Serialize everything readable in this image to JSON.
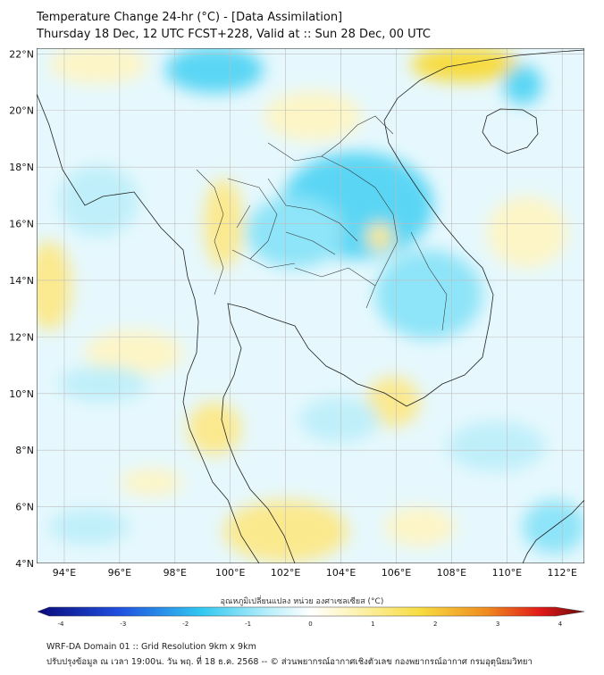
{
  "title_line1": "Temperature Change 24-hr (°C) - [Data Assimilation]",
  "title_line2": "Thursday 18 Dec, 12 UTC FCST+228, Valid at :: Sun 28 Dec, 00 UTC",
  "lat_labels": [
    "22°N",
    "20°N",
    "18°N",
    "16°N",
    "14°N",
    "12°N",
    "10°N",
    "8°N",
    "6°N",
    "4°N"
  ],
  "lon_labels": [
    "94°E",
    "96°E",
    "98°E",
    "100°E",
    "102°E",
    "104°E",
    "106°E",
    "108°E",
    "110°E",
    "112°E"
  ],
  "colorbar": {
    "label": "อุณหภูมิเปลี่ยนแปลง หน่วย องศาเซลเซียส (°C)",
    "min": -4,
    "max": 4,
    "ticks": [
      "-4",
      "-3",
      "-2",
      "-1",
      "0",
      "1",
      "2",
      "3",
      "4"
    ],
    "colors": {
      "navy": "#0a0a7a",
      "blue": "#2050e0",
      "cyan": "#30c8f0",
      "light_cyan": "#b6eefb",
      "white": "#ffffff",
      "light_yellow": "#fdf3b4",
      "yellow": "#f7dc40",
      "orange": "#f08c1e",
      "red": "#e01818",
      "dark_red": "#6a0a0a"
    }
  },
  "field_colors": {
    "ocean_base": "#e6f8fd",
    "pale_cyan": "#bfeffa",
    "cyan": "#8ee4f8",
    "strong_cyan": "#5ad6f4",
    "pale_yellow": "#fdf5c6",
    "yellow": "#fbe98e",
    "strong_yellow": "#f7dc40"
  },
  "footer_line1": "WRF-DA Domain 01 :: Grid Resolution 9km x 9km",
  "footer_line2": "ปรับปรุงข้อมูล ณ เวลา 19:00น. วัน พฤ. ที่ 18 ธ.ค. 2568 -- © ส่วนพยากรณ์อากาศเชิงตัวเลข กองพยากรณ์อากาศ กรมอุตุนิยมวิทยา"
}
